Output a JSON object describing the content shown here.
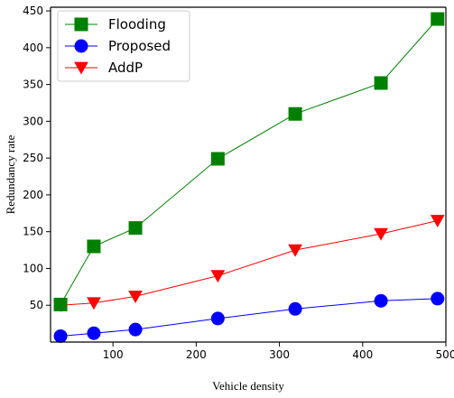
{
  "chart_data": {
    "type": "line",
    "xlabel": "Vehicle density",
    "ylabel": "Redundancy rate",
    "xlim": [
      25,
      500
    ],
    "ylim": [
      0,
      455
    ],
    "xticks": [
      100,
      200,
      300,
      400,
      500
    ],
    "xtick_labels": [
      "100",
      "200",
      "300",
      "400",
      "500"
    ],
    "yticks": [
      50,
      100,
      150,
      200,
      250,
      300,
      350,
      400,
      450
    ],
    "ytick_labels": [
      "50",
      "100",
      "150",
      "200",
      "250",
      "300",
      "350",
      "400",
      "450"
    ],
    "legend_position": "top-left",
    "grid": false,
    "series": [
      {
        "name": "Flooding",
        "color": "#008000",
        "marker": "square",
        "x": [
          37,
          77,
          127,
          226,
          319,
          422,
          490
        ],
        "y": [
          51,
          130,
          155,
          249,
          310,
          352,
          439
        ]
      },
      {
        "name": "Proposed",
        "color": "#0000ff",
        "marker": "circle",
        "x": [
          37,
          77,
          127,
          226,
          319,
          422,
          490
        ],
        "y": [
          8,
          12,
          17,
          32,
          45,
          56,
          59
        ]
      },
      {
        "name": "AddP",
        "color": "#ff0000",
        "marker": "triangle-down",
        "x": [
          37,
          77,
          127,
          226,
          319,
          422,
          490
        ],
        "y": [
          50,
          53,
          62,
          90,
          125,
          147,
          165
        ]
      }
    ]
  }
}
